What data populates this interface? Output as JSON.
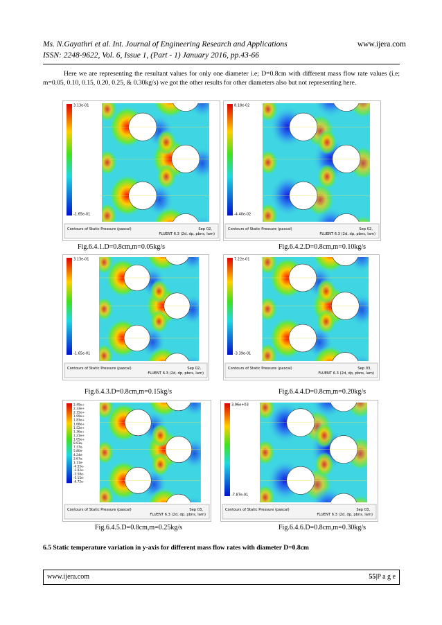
{
  "header": {
    "journal_line": "Ms. N.Gayathri et al. Int. Journal of Engineering Research and Applications",
    "website": "www.ijera.com",
    "issn_line": "ISSN: 2248-9622, Vol. 6, Issue 1, (Part - 1) January 2016, pp.43-66"
  },
  "body": {
    "paragraph": "Here we are representing the resultant values for only one diameter i.e; D=0.8cm with different mass flow rate values (i.e; m=0.05, 0.10, 0.15, 0.20, 0.25, & 0.30kg/s) we got the other results for other diameters also but not representing here."
  },
  "figures": [
    {
      "colorbar_labels": [
        "3.13e-01",
        "-1.65e-01"
      ],
      "legend_title": "Contours of Static Pressure (pascal)",
      "date": "Sep 02,",
      "solver": "FLUENT 6.3 (2d, dp, pbns, lam)",
      "caption": "Fig.6.4.1.D=0.8cm,m=0.05kg/s"
    },
    {
      "colorbar_labels": [
        "8.18e-02",
        "-4.40e-02"
      ],
      "legend_title": "Contours of Static Pressure (pascal)",
      "date": "Sep 02,",
      "solver": "FLUENT 6.3 (2d, dp, pbns, lam)",
      "caption": "Fig.6.4.2.D=0.8cm,m=0.10kg/s"
    },
    {
      "colorbar_labels": [
        "3.13e-01",
        "-1.65e-01"
      ],
      "legend_title": "Contours of Static Pressure (pascal)",
      "date": "Sep 02,",
      "solver": "FLUENT 6.3 (2d, dp, pbns, lam)",
      "caption": "Fig.6.4.3.D=0.8cm,m=0.15kg/s"
    },
    {
      "colorbar_labels": [
        "7.22e-01",
        "-3.39e-01"
      ],
      "legend_title": "Contours of Static Pressure (pascal)",
      "date": "Sep 03,",
      "solver": "FLUENT 6.3 (2d, dp, pbns, lam)",
      "caption": "Fig.6.4.4.D=0.8cm,m=0.20kg/s"
    },
    {
      "colorbar_labels": [
        "2.49e+",
        "2.33e+",
        "2.15e+",
        "1.99e+",
        "1.83e+",
        "1.68e+",
        "1.52e+",
        "1.36e+",
        "1.21e+",
        "1.05e+",
        "8.93e-",
        "7.37e-",
        "5.80e-",
        "4.24e-",
        "2.67e-",
        "1.11e-",
        "-4.55e-",
        "-2.02e-",
        "-3.58e-",
        "-5.15e-",
        "-6.72e-"
      ],
      "legend_title": "Contours of Static Pressure (pascal)",
      "date": "Sep 03,",
      "solver": "FLUENT 6.3 (2d, dp, pbns, lam)",
      "caption": "Fig.6.4.5.D=0.8cm,m=0.25kg/s"
    },
    {
      "colorbar_labels": [
        "3.96e+03",
        "-7.87e-01"
      ],
      "legend_title": "Contours of Static Pressure (pascal)",
      "date": "Sep 03,",
      "solver": "FLUENT 6.3 (2d, dp, pbns, lam)",
      "caption": "Fig.6.4.6.D=0.8cm,m=0.30kg/s"
    }
  ],
  "section_heading": "6.5 Static temperature variation in y-axis for different mass flow rates with diameter D=0.8cm",
  "footer": {
    "website": "www.ijera.com",
    "page_number": "55",
    "page_label": "|P a g e"
  }
}
